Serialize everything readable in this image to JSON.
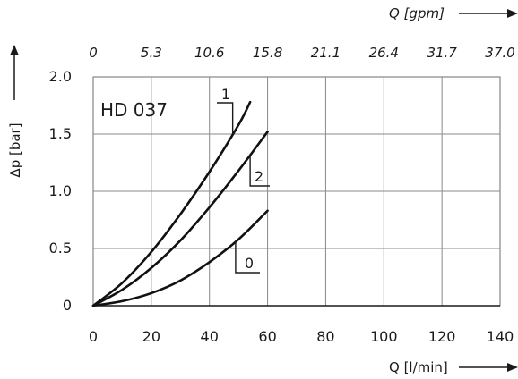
{
  "chart_data": {
    "type": "line",
    "model_label": "HD 037",
    "xlabel": "Q [l/min]",
    "ylabel": "Δp [bar]",
    "x2label": "Q [gpm]",
    "xlim": [
      0,
      140
    ],
    "ylim": [
      0,
      2.0
    ],
    "x_ticks": [
      0,
      20,
      40,
      60,
      80,
      100,
      120,
      140
    ],
    "x_tick_labels": [
      "0",
      "20",
      "40",
      "60",
      "80",
      "100",
      "120",
      "140"
    ],
    "y_ticks": [
      0,
      0.5,
      1.0,
      1.5,
      2.0
    ],
    "y_tick_labels": [
      "0",
      "0.5",
      "1.0",
      "1.5",
      "2.0"
    ],
    "x2_tick_labels": [
      "0",
      "5.3",
      "10.6",
      "15.8",
      "21.1",
      "26.4",
      "31.7",
      "37.0"
    ],
    "grid": true,
    "series": [
      {
        "name": "1",
        "x": [
          0,
          10,
          20,
          30,
          40,
          50,
          54
        ],
        "y": [
          0,
          0.2,
          0.47,
          0.8,
          1.17,
          1.58,
          1.78
        ]
      },
      {
        "name": "2",
        "x": [
          0,
          10,
          20,
          30,
          40,
          50,
          60
        ],
        "y": [
          0,
          0.14,
          0.33,
          0.57,
          0.86,
          1.18,
          1.52
        ]
      },
      {
        "name": "0",
        "x": [
          0,
          10,
          20,
          30,
          40,
          50,
          60
        ],
        "y": [
          0,
          0.04,
          0.11,
          0.22,
          0.38,
          0.58,
          0.83
        ]
      }
    ]
  }
}
